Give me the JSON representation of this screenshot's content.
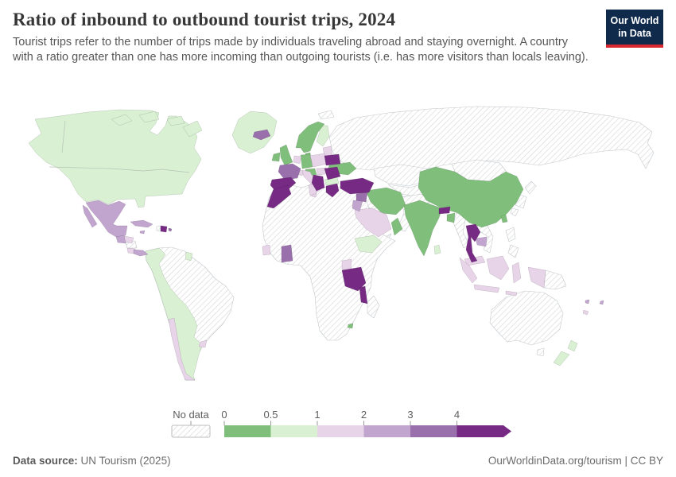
{
  "header": {
    "title": "Ratio of inbound to outbound tourist trips, 2024",
    "subtitle": "Tourist trips refer to the number of trips made by individuals traveling abroad and staying overnight. A country with a ratio greater than one has more incoming than outgoing tourists (i.e. has more visitors than locals leaving).",
    "logo": {
      "line1": "Our World",
      "line2": "in Data"
    },
    "logo_colors": {
      "background": "#102a4c",
      "underline": "#d7282f"
    }
  },
  "legend": {
    "no_data_label": "No data",
    "ticks": [
      "0",
      "0.5",
      "1",
      "2",
      "3",
      "4"
    ],
    "bins": [
      {
        "range": "0–0.5",
        "color": "#7fbf7b"
      },
      {
        "range": "0.5–1",
        "color": "#d9f0d3"
      },
      {
        "range": "1–2",
        "color": "#e7d4e8"
      },
      {
        "range": "2–3",
        "color": "#c2a5cf"
      },
      {
        "range": "3–4",
        "color": "#9970ab"
      },
      {
        "range": "4+",
        "color": "#762a83"
      }
    ]
  },
  "footer": {
    "source_label": "Data source:",
    "source_text": " UN Tourism (2025)",
    "url": "OurWorldinData.org/tourism",
    "separator": " | ",
    "license": "CC BY"
  },
  "chart_data": {
    "type": "choropleth_map",
    "title": "Ratio of inbound to outbound tourist trips, 2024",
    "unit": "ratio (inbound trips / outbound trips)",
    "year": 2024,
    "color_scale": {
      "scheme": "diverging green-purple (PRGn)",
      "bins": [
        {
          "range": "0–0.5",
          "color": "#7fbf7b"
        },
        {
          "range": "0.5–1",
          "color": "#d9f0d3"
        },
        {
          "range": "1–2",
          "color": "#e7d4e8"
        },
        {
          "range": "2–3",
          "color": "#c2a5cf"
        },
        {
          "range": "3–4",
          "color": "#9970ab"
        },
        {
          "range": "4+",
          "color": "#762a83"
        }
      ],
      "no_data_style": "diagonal gray hatching"
    },
    "regions": [
      {
        "name": "Canada",
        "bin": "0.5–1"
      },
      {
        "name": "United States",
        "bin": "0.5–1"
      },
      {
        "name": "Greenland",
        "bin": "0.5–1"
      },
      {
        "name": "Mexico",
        "bin": "2–3"
      },
      {
        "name": "Guatemala",
        "bin": "2–3"
      },
      {
        "name": "Honduras",
        "bin": "1–2"
      },
      {
        "name": "Costa Rica",
        "bin": "1–2"
      },
      {
        "name": "Panama",
        "bin": "2–3"
      },
      {
        "name": "Cuba",
        "bin": "2–3"
      },
      {
        "name": "Jamaica",
        "bin": "2–3"
      },
      {
        "name": "Dominican Republic",
        "bin": "4+"
      },
      {
        "name": "Puerto Rico",
        "bin": "3–4"
      },
      {
        "name": "Colombia",
        "bin": "0.5–1"
      },
      {
        "name": "Ecuador",
        "bin": "0.5–1"
      },
      {
        "name": "Peru",
        "bin": "0.5–1"
      },
      {
        "name": "Bolivia",
        "bin": "0.5–1"
      },
      {
        "name": "Paraguay",
        "bin": "0.5–1"
      },
      {
        "name": "Argentina",
        "bin": "0.5–1"
      },
      {
        "name": "Guyana",
        "bin": "0.5–1"
      },
      {
        "name": "Chile",
        "bin": "1–2"
      },
      {
        "name": "Uruguay",
        "bin": "1–2"
      },
      {
        "name": "Iceland",
        "bin": "3–4"
      },
      {
        "name": "Norway",
        "bin": "0–0.5"
      },
      {
        "name": "Sweden",
        "bin": "0–0.5"
      },
      {
        "name": "Finland",
        "bin": "0.5–1"
      },
      {
        "name": "Denmark",
        "bin": "0–0.5"
      },
      {
        "name": "United Kingdom",
        "bin": "0–0.5"
      },
      {
        "name": "Ireland",
        "bin": "0–0.5"
      },
      {
        "name": "Germany",
        "bin": "0–0.5"
      },
      {
        "name": "Austria",
        "bin": "0–0.5"
      },
      {
        "name": "Netherlands",
        "bin": "1–2"
      },
      {
        "name": "Belgium",
        "bin": "1–2"
      },
      {
        "name": "Poland",
        "bin": "1–2"
      },
      {
        "name": "Czechia",
        "bin": "1–2"
      },
      {
        "name": "Switzerland",
        "bin": "1–2"
      },
      {
        "name": "Hungary",
        "bin": "1–2"
      },
      {
        "name": "Italy",
        "bin": "1–2"
      },
      {
        "name": "France",
        "bin": "3–4"
      },
      {
        "name": "Spain",
        "bin": "4+"
      },
      {
        "name": "Portugal",
        "bin": "4+"
      },
      {
        "name": "Belarus",
        "bin": "4+"
      },
      {
        "name": "Ukraine",
        "bin": "0–0.5"
      },
      {
        "name": "Romania",
        "bin": "4+"
      },
      {
        "name": "Bulgaria",
        "bin": "0.5–1"
      },
      {
        "name": "Croatia",
        "bin": "4+"
      },
      {
        "name": "Albania",
        "bin": "4+"
      },
      {
        "name": "Greece",
        "bin": "4+"
      },
      {
        "name": "Turkey",
        "bin": "4+"
      },
      {
        "name": "Azerbaijan",
        "bin": "0–0.5"
      },
      {
        "name": "Syria",
        "bin": "3–4"
      },
      {
        "name": "Jordan",
        "bin": "2–3"
      },
      {
        "name": "Saudi Arabia",
        "bin": "1–2"
      },
      {
        "name": "Iran",
        "bin": "0–0.5"
      },
      {
        "name": "Oman",
        "bin": "0–0.5"
      },
      {
        "name": "Morocco",
        "bin": "4+"
      },
      {
        "name": "Tunisia",
        "bin": "1–2"
      },
      {
        "name": "Sierra Leone",
        "bin": "1–2"
      },
      {
        "name": "Ghana",
        "bin": "3–4"
      },
      {
        "name": "Ethiopia",
        "bin": "0.5–1"
      },
      {
        "name": "Uganda",
        "bin": "1–2"
      },
      {
        "name": "Tanzania",
        "bin": "4+"
      },
      {
        "name": "Malawi",
        "bin": "4+"
      },
      {
        "name": "Eswatini",
        "bin": "0–0.5"
      },
      {
        "name": "China",
        "bin": "0–0.5"
      },
      {
        "name": "India",
        "bin": "0–0.5"
      },
      {
        "name": "Bangladesh",
        "bin": "0–0.5"
      },
      {
        "name": "Bhutan",
        "bin": "4+"
      },
      {
        "name": "Sri Lanka",
        "bin": "0.5–1"
      },
      {
        "name": "Thailand",
        "bin": "4+"
      },
      {
        "name": "Cambodia",
        "bin": "2–3"
      },
      {
        "name": "Malaysia",
        "bin": "1–2"
      },
      {
        "name": "Indonesia",
        "bin": "1–2"
      },
      {
        "name": "Taiwan",
        "bin": "0–0.5"
      },
      {
        "name": "Fiji",
        "bin": "2–3"
      },
      {
        "name": "New Caledonia",
        "bin": "1–2"
      },
      {
        "name": "New Zealand",
        "bin": "0.5–1"
      },
      {
        "name": "Russia",
        "bin": "No data"
      },
      {
        "name": "Kazakhstan",
        "bin": "No data"
      },
      {
        "name": "Mongolia",
        "bin": "No data"
      },
      {
        "name": "Japan",
        "bin": "No data"
      },
      {
        "name": "South Korea",
        "bin": "No data"
      },
      {
        "name": "North Korea",
        "bin": "No data"
      },
      {
        "name": "Philippines",
        "bin": "No data"
      },
      {
        "name": "Vietnam",
        "bin": "No data"
      },
      {
        "name": "Laos",
        "bin": "No data"
      },
      {
        "name": "Myanmar",
        "bin": "No data"
      },
      {
        "name": "Pakistan",
        "bin": "No data"
      },
      {
        "name": "Afghanistan",
        "bin": "No data"
      },
      {
        "name": "Iraq",
        "bin": "No data"
      },
      {
        "name": "Yemen",
        "bin": "No data"
      },
      {
        "name": "Egypt",
        "bin": "No data"
      },
      {
        "name": "Libya",
        "bin": "No data"
      },
      {
        "name": "Algeria",
        "bin": "No data"
      },
      {
        "name": "Nigeria",
        "bin": "No data"
      },
      {
        "name": "Kenya",
        "bin": "No data"
      },
      {
        "name": "South Africa",
        "bin": "No data"
      },
      {
        "name": "Madagascar",
        "bin": "No data"
      },
      {
        "name": "Brazil",
        "bin": "No data"
      },
      {
        "name": "Venezuela",
        "bin": "No data"
      },
      {
        "name": "Nicaragua",
        "bin": "No data"
      },
      {
        "name": "Haiti",
        "bin": "No data"
      },
      {
        "name": "Australia",
        "bin": "No data"
      },
      {
        "name": "Papua New Guinea",
        "bin": "No data"
      }
    ]
  }
}
